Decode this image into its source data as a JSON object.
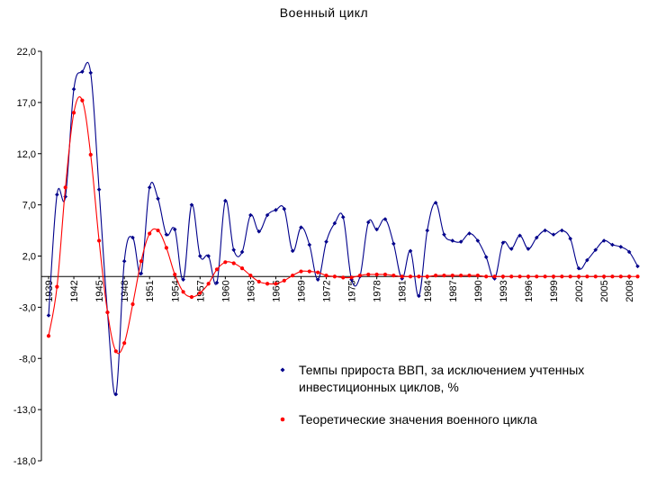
{
  "chart_data": {
    "type": "line",
    "title": "Военный цикл",
    "xlabel": "",
    "ylabel": "",
    "ylim": [
      -18,
      22
    ],
    "yticks": [
      "22,0",
      "17,0",
      "12,0",
      "7,0",
      "2,0",
      "-3,0",
      "-8,0",
      "-13,0",
      "-18,0"
    ],
    "ytick_values": [
      22,
      17,
      12,
      7,
      2,
      -3,
      -8,
      -13,
      -18
    ],
    "xlim": [
      1939,
      2011
    ],
    "xticks": [
      "1939",
      "1942",
      "1945",
      "1948",
      "1951",
      "1954",
      "1957",
      "1960",
      "1963",
      "1966",
      "1969",
      "1972",
      "1975",
      "1978",
      "1981",
      "1984",
      "1987",
      "1990",
      "1993",
      "1996",
      "1999",
      "2002",
      "2005",
      "2008"
    ],
    "xtick_values": [
      1939,
      1942,
      1945,
      1948,
      1951,
      1954,
      1957,
      1960,
      1963,
      1966,
      1969,
      1972,
      1975,
      1978,
      1981,
      1984,
      1987,
      1990,
      1993,
      1996,
      1999,
      2002,
      2005,
      2008
    ],
    "legend_position": "bottom-right",
    "grid": false,
    "series": [
      {
        "name": "Темпы прироста ВВП,  за исключением учтенных инвестиционных  циклов, %",
        "color": "#00008B",
        "x": [
          1939,
          1940,
          1941,
          1942,
          1943,
          1944,
          1945,
          1946,
          1947,
          1948,
          1949,
          1950,
          1951,
          1952,
          1953,
          1954,
          1955,
          1956,
          1957,
          1958,
          1959,
          1960,
          1961,
          1962,
          1963,
          1964,
          1965,
          1966,
          1967,
          1968,
          1969,
          1970,
          1971,
          1972,
          1973,
          1974,
          1975,
          1976,
          1977,
          1978,
          1979,
          1980,
          1981,
          1982,
          1983,
          1984,
          1985,
          1986,
          1987,
          1988,
          1989,
          1990,
          1991,
          1992,
          1993,
          1994,
          1995,
          1996,
          1997,
          1998,
          1999,
          2000,
          2001,
          2002,
          2003,
          2004,
          2005,
          2006,
          2007,
          2008,
          2009
        ],
        "values": [
          -3.8,
          8.0,
          7.8,
          18.3,
          20.0,
          19.9,
          8.5,
          -3.5,
          -11.5,
          1.5,
          3.8,
          0.3,
          8.7,
          7.6,
          4.1,
          4.6,
          -0.3,
          7.0,
          2.0,
          2.0,
          -0.6,
          7.4,
          2.6,
          2.4,
          6.0,
          4.4,
          6.0,
          6.5,
          6.6,
          2.5,
          4.8,
          3.1,
          -0.3,
          3.4,
          5.2,
          5.8,
          -0.3,
          0.0,
          5.3,
          4.6,
          5.6,
          3.2,
          -0.2,
          2.5,
          -1.9,
          4.5,
          7.2,
          4.1,
          3.5,
          3.4,
          4.2,
          3.5,
          1.9,
          -0.2,
          3.3,
          2.7,
          4.0,
          2.7,
          3.8,
          4.5,
          4.1,
          4.5,
          3.7,
          0.8,
          1.6,
          2.6,
          3.5,
          3.1,
          2.9,
          2.4,
          1.0
        ]
      },
      {
        "name": "Теоретические значения военного цикла",
        "color": "#FF0000",
        "x": [
          1939,
          1940,
          1941,
          1942,
          1943,
          1944,
          1945,
          1946,
          1947,
          1948,
          1949,
          1950,
          1951,
          1952,
          1953,
          1954,
          1955,
          1956,
          1957,
          1958,
          1959,
          1960,
          1961,
          1962,
          1963,
          1964,
          1965,
          1966,
          1967,
          1968,
          1969,
          1970,
          1971,
          1972,
          1973,
          1974,
          1975,
          1976,
          1977,
          1978,
          1979,
          1980,
          1981,
          1982,
          1983,
          1984,
          1985,
          1986,
          1987,
          1988,
          1989,
          1990,
          1991,
          1992,
          1993,
          1994,
          1995,
          1996,
          1997,
          1998,
          1999,
          2000,
          2001,
          2002,
          2003,
          2004,
          2005,
          2006,
          2007,
          2008,
          2009
        ],
        "values": [
          -5.8,
          -1.0,
          8.7,
          16.0,
          17.2,
          11.9,
          3.5,
          -3.5,
          -7.3,
          -6.5,
          -2.7,
          1.5,
          4.2,
          4.5,
          2.8,
          0.2,
          -1.5,
          -2.0,
          -1.6,
          -0.7,
          0.7,
          1.4,
          1.3,
          0.8,
          0.1,
          -0.5,
          -0.7,
          -0.7,
          -0.4,
          0.1,
          0.5,
          0.5,
          0.4,
          0.1,
          0.0,
          -0.1,
          -0.1,
          0.1,
          0.2,
          0.2,
          0.2,
          0.1,
          0.0,
          0.0,
          0.0,
          0.0,
          0.1,
          0.1,
          0.1,
          0.1,
          0.1,
          0.1,
          0.0,
          0.0,
          0.0,
          0.0,
          0.0,
          0.0,
          0.0,
          0.0,
          0.0,
          0.0,
          0.0,
          0.0,
          0.0,
          0.0,
          0.0,
          0.0,
          0.0,
          0.0,
          0.0
        ]
      }
    ]
  }
}
